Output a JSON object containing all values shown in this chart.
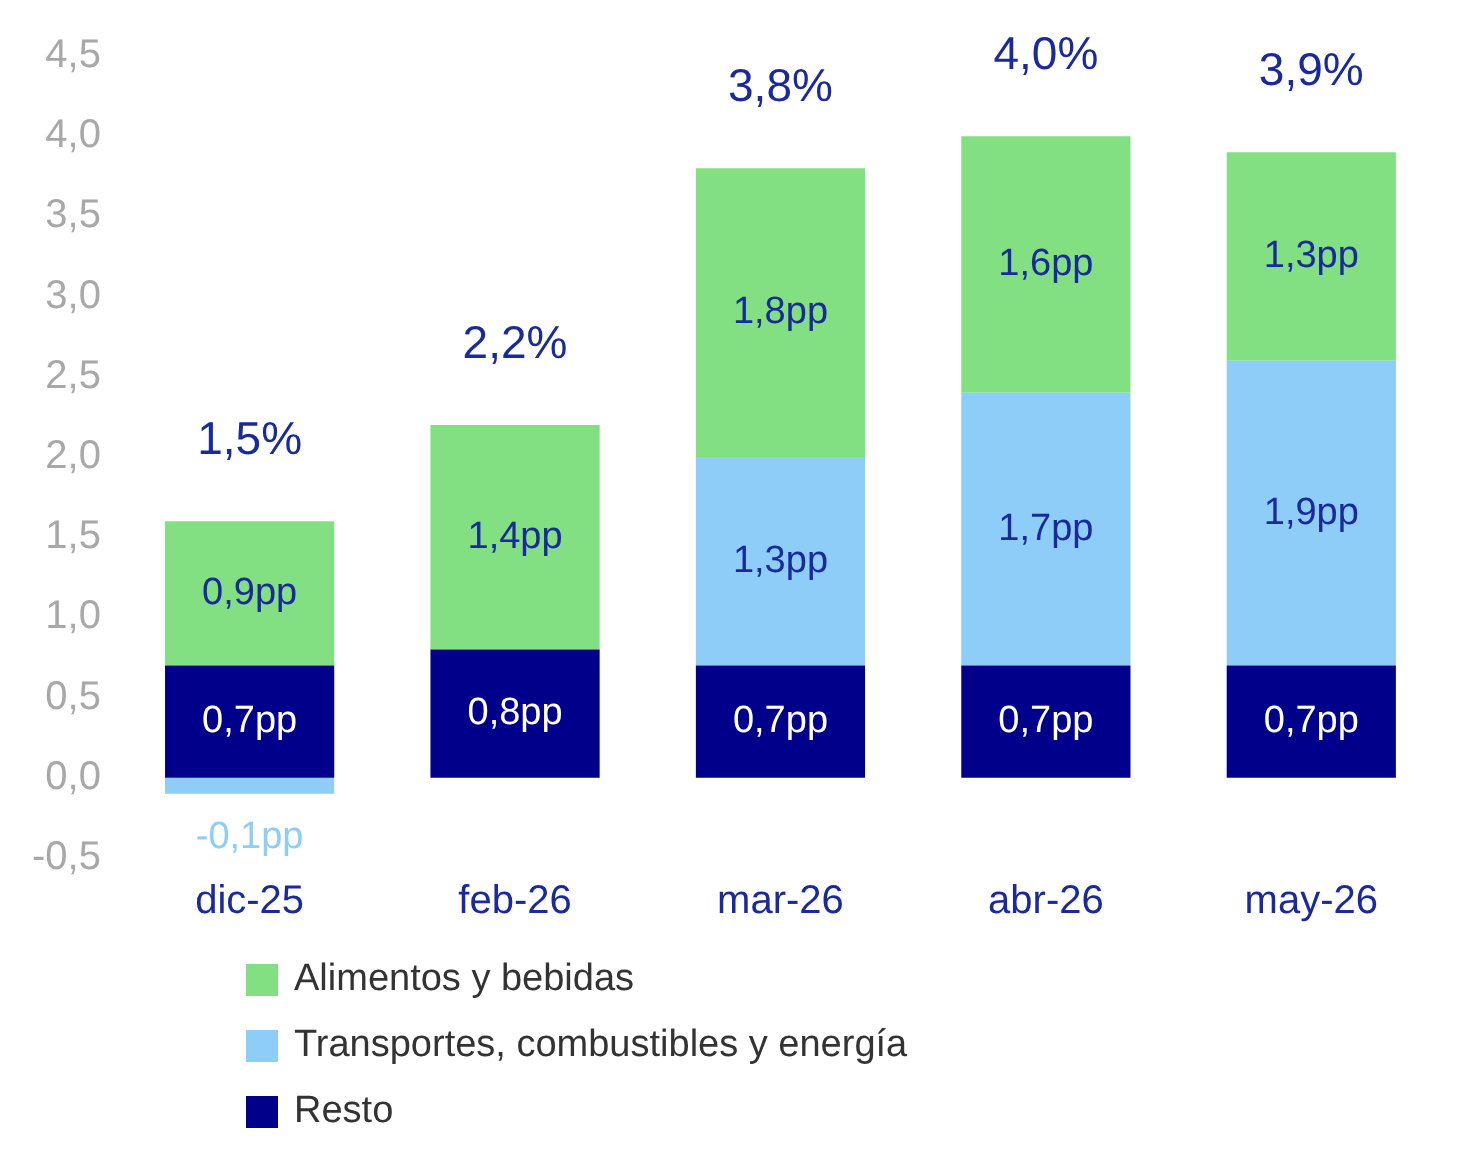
{
  "chart_data": {
    "type": "bar",
    "stacked": true,
    "categories": [
      "dic-25",
      "feb-26",
      "mar-26",
      "abr-26",
      "may-26"
    ],
    "series": [
      {
        "name": "Resto",
        "color": "#00008b",
        "values": [
          0.7,
          0.8,
          0.7,
          0.7,
          0.7
        ],
        "value_labels": [
          "0,7pp",
          "0,8pp",
          "0,7pp",
          "0,7pp",
          "0,7pp"
        ]
      },
      {
        "name": "Transportes, combustibles y energía",
        "color": "#8ecdf8",
        "values": [
          -0.1,
          null,
          1.3,
          1.7,
          1.9
        ],
        "value_labels": [
          "-0,1pp",
          null,
          "1,3pp",
          "1,7pp",
          "1,9pp"
        ]
      },
      {
        "name": "Alimentos y bebidas",
        "color": "#82df82",
        "values": [
          0.9,
          1.4,
          1.8,
          1.6,
          1.3
        ],
        "value_labels": [
          "0,9pp",
          "1,4pp",
          "1,8pp",
          "1,6pp",
          "1,3pp"
        ]
      }
    ],
    "totals": [
      "1,5%",
      "2,2%",
      "3,8%",
      "4,0%",
      "3,9%"
    ],
    "ylim": [
      -0.5,
      4.5
    ],
    "yticks": [
      {
        "value": -0.5,
        "label": "-0,5"
      },
      {
        "value": 0,
        "label": "0,0"
      },
      {
        "value": 0.5,
        "label": "0,5"
      },
      {
        "value": 1,
        "label": "1,0"
      },
      {
        "value": 1.5,
        "label": "1,5"
      },
      {
        "value": 2,
        "label": "2,0"
      },
      {
        "value": 2.5,
        "label": "2,5"
      },
      {
        "value": 3,
        "label": "3,0"
      },
      {
        "value": 3.5,
        "label": "3,5"
      },
      {
        "value": 4,
        "label": "4,0"
      },
      {
        "value": 4.5,
        "label": "4,5"
      }
    ],
    "grid": false,
    "legend": "bottom left"
  }
}
